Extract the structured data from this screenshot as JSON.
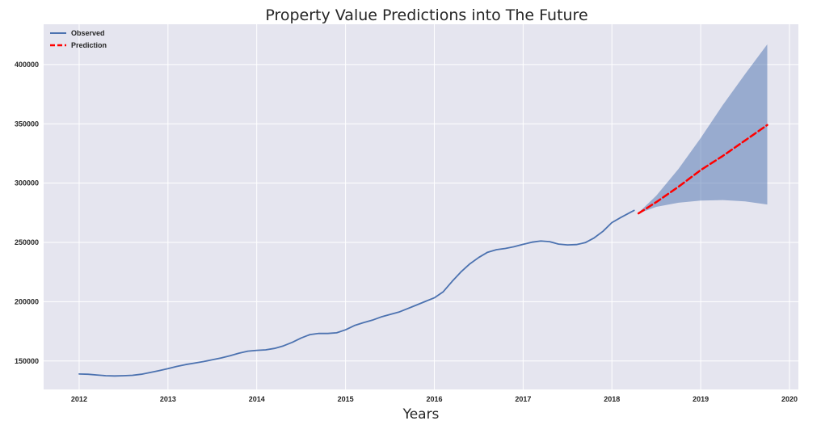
{
  "chart_data": {
    "type": "line",
    "title": "Property Value Predictions into The Future",
    "xlabel": "Years",
    "ylabel": "",
    "xlim": [
      2011.6,
      2020.1
    ],
    "ylim": [
      126000,
      434000
    ],
    "x_ticks": [
      2012,
      2013,
      2014,
      2015,
      2016,
      2017,
      2018,
      2019,
      2020
    ],
    "y_ticks": [
      150000,
      200000,
      250000,
      300000,
      350000,
      400000
    ],
    "grid": true,
    "legend": {
      "placement": "top-left",
      "entries": [
        "Observed",
        "Prediction"
      ]
    },
    "colors": {
      "observed": "#4c72b0",
      "prediction": "#ff0000",
      "band": "#4c72b0",
      "background": "#e5e5ef",
      "grid": "#ffffff"
    },
    "series": [
      {
        "name": "Observed",
        "style": "solid",
        "x": [
          2012.0,
          2012.1,
          2012.2,
          2012.3,
          2012.4,
          2012.5,
          2012.6,
          2012.7,
          2012.8,
          2012.9,
          2013.0,
          2013.1,
          2013.2,
          2013.3,
          2013.4,
          2013.5,
          2013.6,
          2013.7,
          2013.8,
          2013.9,
          2014.0,
          2014.1,
          2014.2,
          2014.3,
          2014.4,
          2014.5,
          2014.6,
          2014.7,
          2014.8,
          2014.9,
          2015.0,
          2015.1,
          2015.2,
          2015.3,
          2015.4,
          2015.5,
          2015.6,
          2015.7,
          2015.8,
          2015.9,
          2016.0,
          2016.1,
          2016.2,
          2016.3,
          2016.4,
          2016.5,
          2016.6,
          2016.7,
          2016.8,
          2016.9,
          2017.0,
          2017.1,
          2017.2,
          2017.3,
          2017.4,
          2017.5,
          2017.6,
          2017.7,
          2017.8,
          2017.9,
          2018.0,
          2018.1,
          2018.2,
          2018.25
        ],
        "y": [
          139000,
          138800,
          138200,
          137600,
          137400,
          137600,
          137900,
          138800,
          140300,
          141900,
          143500,
          145400,
          147000,
          148200,
          149500,
          151000,
          152600,
          154500,
          156600,
          158300,
          159000,
          159400,
          160600,
          162700,
          165700,
          169400,
          172300,
          173300,
          173200,
          173800,
          176300,
          179900,
          182300,
          184400,
          187100,
          189200,
          191200,
          194200,
          197200,
          200300,
          203300,
          208400,
          217100,
          225100,
          231900,
          237300,
          241700,
          243900,
          244900,
          246400,
          248400,
          250200,
          251200,
          250600,
          248600,
          247900,
          248200,
          249800,
          253800,
          259400,
          266700,
          271000,
          275000,
          277000
        ]
      },
      {
        "name": "Prediction",
        "style": "dashed",
        "x": [
          2018.3,
          2018.5,
          2018.75,
          2019.0,
          2019.25,
          2019.5,
          2019.75
        ],
        "y": [
          274500,
          284000,
          297000,
          311000,
          323000,
          336000,
          349000
        ]
      }
    ],
    "confidence_band": {
      "x": [
        2018.3,
        2018.5,
        2018.75,
        2019.0,
        2019.25,
        2019.5,
        2019.75
      ],
      "lower": [
        274500,
        280000,
        283500,
        285300,
        285700,
        284600,
        282000
      ],
      "upper": [
        275000,
        289500,
        312000,
        338000,
        366000,
        392000,
        417000
      ]
    }
  }
}
